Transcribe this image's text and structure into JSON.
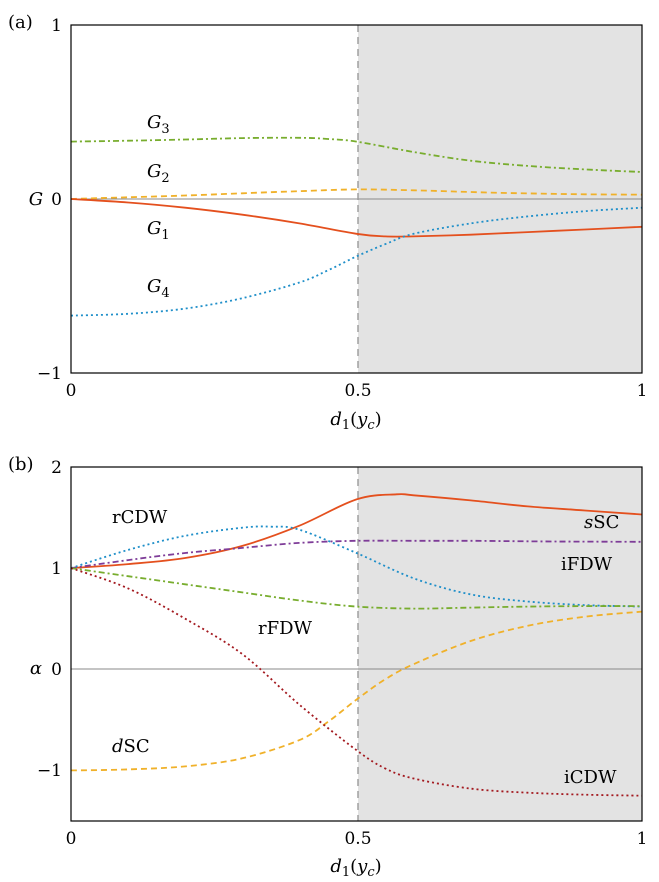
{
  "chart_data": [
    {
      "panel": "(a)",
      "type": "line",
      "xlabel": "d1(yc)",
      "ylabel": "G",
      "xlim": [
        0,
        1
      ],
      "ylim": [
        -1,
        1
      ],
      "xticks": [
        "0",
        "0.5",
        "1"
      ],
      "yticks": [
        "−1",
        "0",
        "1"
      ],
      "shaded_region": [
        0.5,
        1
      ],
      "vline": 0.5,
      "hline": 0,
      "colors": {
        "G1": "#e4501e",
        "G2": "#f0b12a",
        "G3": "#78ad2e",
        "G4": "#1f8fc9"
      },
      "series": [
        {
          "key": "G3",
          "name": "G",
          "sub": "3",
          "style": "dashdot",
          "x": [
            0,
            0.1,
            0.2,
            0.3,
            0.4,
            0.45,
            0.5,
            0.6,
            0.7,
            0.8,
            0.9,
            1.0
          ],
          "y": [
            0.33,
            0.335,
            0.342,
            0.35,
            0.352,
            0.345,
            0.33,
            0.27,
            0.22,
            0.19,
            0.17,
            0.155
          ]
        },
        {
          "key": "G2",
          "name": "G",
          "sub": "2",
          "style": "dashed",
          "x": [
            0,
            0.1,
            0.2,
            0.3,
            0.4,
            0.5,
            0.6,
            0.7,
            0.8,
            0.9,
            1.0
          ],
          "y": [
            0.0,
            0.01,
            0.02,
            0.033,
            0.045,
            0.055,
            0.05,
            0.04,
            0.032,
            0.027,
            0.025
          ]
        },
        {
          "key": "G1",
          "name": "G",
          "sub": "1",
          "style": "solid",
          "x": [
            0,
            0.1,
            0.2,
            0.3,
            0.4,
            0.5,
            0.55,
            0.6,
            0.7,
            0.8,
            0.9,
            1.0
          ],
          "y": [
            0.0,
            -0.02,
            -0.05,
            -0.09,
            -0.14,
            -0.2,
            -0.215,
            -0.215,
            -0.205,
            -0.19,
            -0.175,
            -0.16
          ]
        },
        {
          "key": "G4",
          "name": "G",
          "sub": "4",
          "style": "dotted",
          "x": [
            0,
            0.1,
            0.2,
            0.3,
            0.4,
            0.45,
            0.5,
            0.55,
            0.6,
            0.7,
            0.8,
            0.9,
            1.0
          ],
          "y": [
            -0.67,
            -0.66,
            -0.63,
            -0.57,
            -0.48,
            -0.41,
            -0.33,
            -0.26,
            -0.2,
            -0.14,
            -0.1,
            -0.07,
            -0.05
          ]
        }
      ]
    },
    {
      "panel": "(b)",
      "type": "line",
      "xlabel": "d1(yc)",
      "ylabel": "α",
      "xlim": [
        0,
        1
      ],
      "ylim": [
        -1.5,
        2
      ],
      "xticks": [
        "0",
        "0.5",
        "1"
      ],
      "yticks": [
        "−1",
        "0",
        "1",
        "2"
      ],
      "shaded_region": [
        0.5,
        1
      ],
      "vline": 0.5,
      "hline": 0,
      "colors": {
        "sSC": "#e4501e",
        "iFDW": "#7e3c98",
        "rCDW": "#1f8fc9",
        "rFDW": "#78ad2e",
        "dSC": "#f0b12a",
        "iCDW": "#a3191f"
      },
      "series": [
        {
          "key": "sSC",
          "name": "sSC",
          "style": "solid",
          "x": [
            0,
            0.1,
            0.2,
            0.3,
            0.4,
            0.5,
            0.57,
            0.6,
            0.7,
            0.8,
            0.9,
            1.0
          ],
          "y": [
            1.0,
            1.04,
            1.1,
            1.22,
            1.42,
            1.68,
            1.73,
            1.72,
            1.67,
            1.61,
            1.57,
            1.53
          ]
        },
        {
          "key": "iFDW",
          "name": "iFDW",
          "style": "dashdot",
          "x": [
            0,
            0.1,
            0.2,
            0.3,
            0.4,
            0.5,
            0.6,
            0.7,
            0.8,
            0.9,
            1.0
          ],
          "y": [
            1.0,
            1.08,
            1.15,
            1.2,
            1.25,
            1.27,
            1.27,
            1.27,
            1.265,
            1.262,
            1.26
          ]
        },
        {
          "key": "rCDW",
          "name": "rCDW",
          "style": "dotted",
          "x": [
            0,
            0.1,
            0.2,
            0.3,
            0.35,
            0.4,
            0.5,
            0.6,
            0.7,
            0.8,
            0.9,
            1.0
          ],
          "y": [
            1.0,
            1.18,
            1.32,
            1.4,
            1.41,
            1.38,
            1.15,
            0.9,
            0.74,
            0.67,
            0.635,
            0.62
          ]
        },
        {
          "key": "rFDW",
          "name": "rFDW",
          "style": "dashdot",
          "x": [
            0,
            0.1,
            0.2,
            0.3,
            0.4,
            0.5,
            0.6,
            0.7,
            0.8,
            0.9,
            1.0
          ],
          "y": [
            1.0,
            0.92,
            0.84,
            0.76,
            0.68,
            0.62,
            0.6,
            0.61,
            0.62,
            0.625,
            0.625
          ]
        },
        {
          "key": "dSC",
          "name": "dSC",
          "style": "dashed",
          "x": [
            0,
            0.1,
            0.2,
            0.3,
            0.4,
            0.45,
            0.5,
            0.55,
            0.6,
            0.7,
            0.8,
            0.9,
            1.0
          ],
          "y": [
            -1.0,
            -0.99,
            -0.96,
            -0.88,
            -0.7,
            -0.52,
            -0.3,
            -0.1,
            0.05,
            0.28,
            0.43,
            0.52,
            0.57
          ]
        },
        {
          "key": "iCDW",
          "name": "iCDW",
          "style": "dotted",
          "x": [
            0,
            0.1,
            0.2,
            0.3,
            0.4,
            0.5,
            0.55,
            0.6,
            0.7,
            0.8,
            0.9,
            1.0
          ],
          "y": [
            1.0,
            0.8,
            0.5,
            0.15,
            -0.35,
            -0.8,
            -0.98,
            -1.08,
            -1.18,
            -1.22,
            -1.24,
            -1.25
          ]
        }
      ]
    }
  ],
  "labels": {
    "a": {
      "G3": "3",
      "G2": "2",
      "G1": "1",
      "G4": "4"
    },
    "b": {
      "sSC_prefix": "s",
      "sSC_suffix": "SC",
      "iFDW": "iFDW",
      "rCDW": "rCDW",
      "rFDW": "rFDW",
      "dSC_prefix": "d",
      "dSC_suffix": "SC",
      "iCDW": "iCDW"
    }
  }
}
